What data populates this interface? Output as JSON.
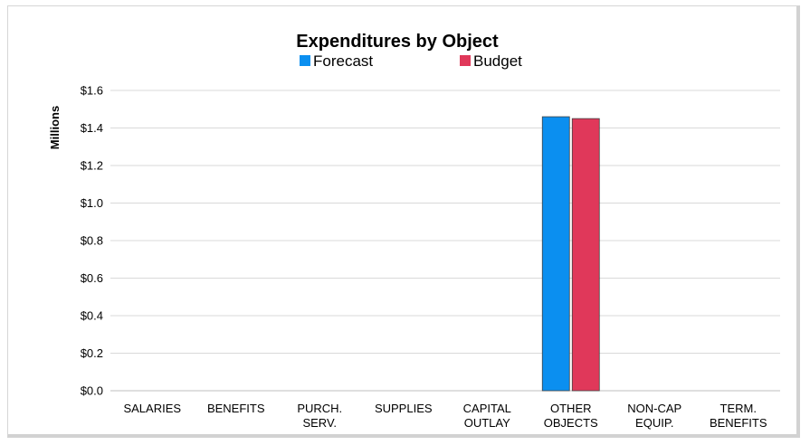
{
  "chart_data": {
    "type": "bar",
    "title": "Expenditures by Object",
    "ylabel": "Millions",
    "xlabel": "",
    "ylim": [
      0,
      1.6
    ],
    "ytick_step": 0.2,
    "y_tick_labels": [
      "$0.0",
      "$0.2",
      "$0.4",
      "$0.6",
      "$0.8",
      "$1.0",
      "$1.2",
      "$1.4",
      "$1.6"
    ],
    "grid": true,
    "legend_position": "top",
    "categories": [
      [
        "SALARIES"
      ],
      [
        "BENEFITS"
      ],
      [
        "PURCH.",
        "SERV."
      ],
      [
        "SUPPLIES"
      ],
      [
        "CAPITAL",
        "OUTLAY"
      ],
      [
        "OTHER",
        "OBJECTS"
      ],
      [
        "NON-CAP",
        "EQUIP."
      ],
      [
        "TERM.",
        "BENEFITS"
      ]
    ],
    "series": [
      {
        "name": "Forecast",
        "color": "#0b8ff0",
        "values": [
          0,
          0,
          0,
          0,
          0,
          1.46,
          0,
          0
        ]
      },
      {
        "name": "Budget",
        "color": "#e0385a",
        "values": [
          0,
          0,
          0,
          0,
          0,
          1.45,
          0,
          0
        ]
      }
    ]
  }
}
